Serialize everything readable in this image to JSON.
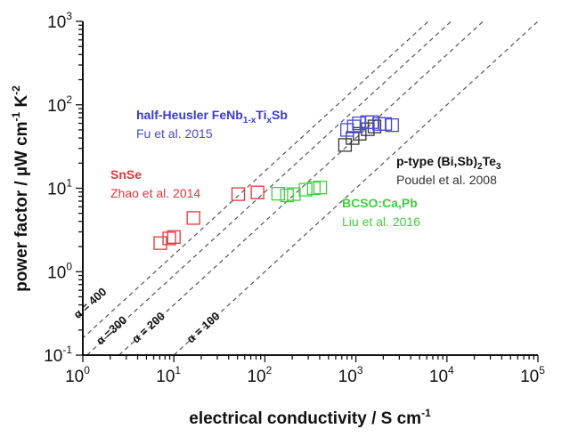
{
  "chart_data": {
    "type": "scatter",
    "xscale": "log",
    "yscale": "log",
    "xlim": [
      1,
      100000
    ],
    "ylim": [
      0.1,
      1000
    ],
    "xlabel": "electrical conductivity / S cm^-1",
    "ylabel": "power factor / µW cm^-1 K^-2",
    "xticks": [
      {
        "base": "10",
        "exp": "0",
        "v": 1
      },
      {
        "base": "10",
        "exp": "1",
        "v": 10
      },
      {
        "base": "10",
        "exp": "2",
        "v": 100
      },
      {
        "base": "10",
        "exp": "3",
        "v": 1000
      },
      {
        "base": "10",
        "exp": "4",
        "v": 10000
      },
      {
        "base": "10",
        "exp": "5",
        "v": 100000
      }
    ],
    "yticks": [
      {
        "base": "10",
        "exp": "-1",
        "v": 0.1
      },
      {
        "base": "10",
        "exp": "0",
        "v": 1
      },
      {
        "base": "10",
        "exp": "1",
        "v": 10
      },
      {
        "base": "10",
        "exp": "2",
        "v": 100
      },
      {
        "base": "10",
        "exp": "3",
        "v": 1000
      }
    ],
    "iso_lines": [
      {
        "alpha": 400,
        "label": "α = 400"
      },
      {
        "alpha": 300,
        "label": "α =300"
      },
      {
        "alpha": 200,
        "label": "α = 200"
      },
      {
        "alpha": 100,
        "label": "α = 100"
      }
    ],
    "series": [
      {
        "name": "SnSe",
        "ref": "Zhao et al. 2014",
        "color": "#e0363a",
        "x": [
          7.1,
          8.9,
          10,
          16.4,
          51,
          83
        ],
        "y": [
          2.2,
          2.5,
          2.6,
          4.4,
          8.5,
          8.9
        ]
      },
      {
        "name": "BCSO:Ca,Pb",
        "ref": "Liu et al. 2016",
        "color": "#3fcf3f",
        "x": [
          140,
          175,
          208,
          280,
          345,
          405
        ],
        "y": [
          8.6,
          8.2,
          8.5,
          9.6,
          10,
          10.2
        ]
      },
      {
        "name": "p-type (Bi,Sb)2Te3",
        "ref": "Poudel et al. 2008",
        "color": "#333333",
        "x": [
          760,
          920,
          1100,
          1350,
          1600
        ],
        "y": [
          33,
          40,
          45,
          51,
          55
        ]
      },
      {
        "name": "half-Heusler FeNb1-xTixSb",
        "ref": "Fu et al. 2015",
        "color": "#4a4ad8",
        "x": [
          800,
          950,
          1080,
          1330,
          1500,
          1800,
          2100,
          2500
        ],
        "y": [
          50,
          55,
          60,
          62,
          62,
          59,
          59,
          57
        ]
      }
    ]
  },
  "labels": {
    "hh_title": "half-Heusler FeNb",
    "hh_sub1": "1-x",
    "hh_ti": "Ti",
    "hh_sub2": "x",
    "hh_sb": "Sb",
    "hh_ref": "Fu et al. 2015",
    "bt_title": "p-type (Bi,Sb)",
    "bt_sub": "2",
    "bt_te": "Te",
    "bt_sub2": "3",
    "bt_ref": "Poudel et al. 2008",
    "sn_title": "SnSe",
    "sn_ref": "Zhao et al. 2014",
    "bc_title": "BCSO:Ca,Pb",
    "bc_ref": "Liu et al. 2016",
    "xlabel_main": "electrical conductivity / S cm",
    "xlabel_exp": "-1",
    "ylabel_main": "power factor / µW cm",
    "ylabel_exp1": "-1",
    "ylabel_k": " K",
    "ylabel_exp2": "-2"
  }
}
